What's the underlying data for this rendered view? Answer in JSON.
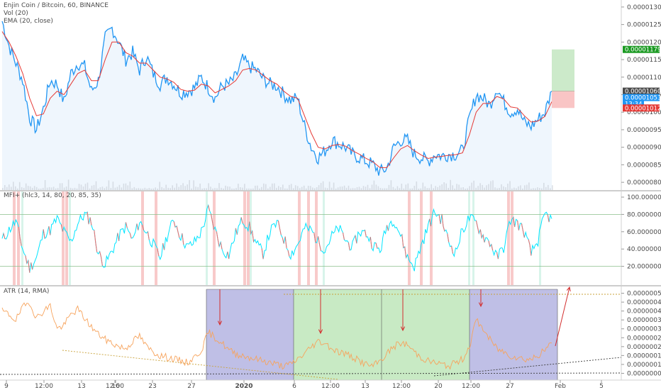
{
  "legend": {
    "symbol": "Enjin Coin / Bitcoin, 60, BINANCE",
    "vol": "Vol (20)",
    "ema": "EMA (20, close)",
    "mfi": "MFI+ (hlc3, 14, 80, 20, 85, 35)",
    "atr": "ATR (14, RMA)"
  },
  "colors": {
    "price_line": "#2196f3",
    "ema_line": "#e53935",
    "mfi_line": "#00e5ff",
    "mfi_red": "#e57373",
    "atr_line": "#f7a35c",
    "blue_box": "#9c9cd9",
    "green_box": "#b5e3b0",
    "arrow": "#d32f2f"
  },
  "chart_data": [
    {
      "type": "line",
      "panel": "price",
      "y_ticks": [
        "0.00001300",
        "0.00001250",
        "0.00001200",
        "0.00001150",
        "0.00001100",
        "0.00001050",
        "0.00001000",
        "0.00000950",
        "0.00000900",
        "0.00000850",
        "0.00000800"
      ],
      "ylim": [
        7.78e-06,
        1.32e-05
      ],
      "series": [
        {
          "name": "EnjinCoin/BTC",
          "values": [
            1.26e-05,
            1.19e-05,
            1.14e-05,
            1.09e-05,
            9.85e-06,
            9.5e-06,
            1.01e-05,
            1.09e-05,
            1.08e-05,
            1.03e-05,
            1.11e-05,
            1.14e-05,
            1.13e-05,
            1.06e-05,
            1.09e-05,
            1.21e-05,
            1.24e-05,
            1.2e-05,
            1.15e-05,
            1.17e-05,
            1.12e-05,
            1.16e-05,
            1.11e-05,
            1.08e-05,
            1.1e-05,
            1.08e-05,
            1.055e-05,
            1.06e-05,
            1.07e-05,
            1.1e-05,
            1.07e-05,
            1.04e-05,
            1.075e-05,
            1.08e-05,
            1.1e-05,
            1.15e-05,
            1.13e-05,
            1.12e-05,
            1.095e-05,
            1.08e-05,
            1.075e-05,
            1.05e-05,
            1.035e-05,
            1.04e-05,
            9.6e-06,
            9e-06,
            8.7e-06,
            8.9e-06,
            9.2e-06,
            9.1e-06,
            9e-06,
            8.8e-06,
            8.7e-06,
            8.6e-06,
            8.5e-06,
            8.3e-06,
            8.4e-06,
            9e-06,
            9.2e-06,
            9.2e-06,
            8.8e-06,
            8.7e-06,
            8.6e-06,
            8.8e-06,
            8.75e-06,
            8.8e-06,
            8.8e-06,
            8.9e-06,
            9.8e-06,
            1.05e-05,
            1.04e-05,
            1.02e-05,
            1.07e-05,
            1.03e-05,
            1e-05,
            1.01e-05,
            9.7e-06,
            9.6e-06,
            9.8e-06,
            1e-05,
            1.06e-05
          ]
        },
        {
          "name": "EMA",
          "values": [
            1.23e-05,
            1.2e-05,
            1.16e-05,
            1.11e-05,
            1.04e-05,
            9.9e-06,
            9.95e-06,
            1.04e-05,
            1.06e-05,
            1.05e-05,
            1.08e-05,
            1.11e-05,
            1.12e-05,
            1.09e-05,
            1.09e-05,
            1.15e-05,
            1.2e-05,
            1.2e-05,
            1.17e-05,
            1.16e-05,
            1.14e-05,
            1.14e-05,
            1.12e-05,
            1.1e-05,
            1.095e-05,
            1.085e-05,
            1.065e-05,
            1.06e-05,
            1.063e-05,
            1.08e-05,
            1.075e-05,
            1.055e-05,
            1.065e-05,
            1.075e-05,
            1.09e-05,
            1.12e-05,
            1.125e-05,
            1.12e-05,
            1.105e-05,
            1.09e-05,
            1.08e-05,
            1.06e-05,
            1.045e-05,
            1.04e-05,
            9.9e-06,
            9.4e-06,
            9e-06,
            8.95e-06,
            9.05e-06,
            9.08e-06,
            9.03e-06,
            8.9e-06,
            8.8e-06,
            8.68e-06,
            8.58e-06,
            8.42e-06,
            8.42e-06,
            8.7e-06,
            8.95e-06,
            9.05e-06,
            8.9e-06,
            8.78e-06,
            8.68e-06,
            8.72e-06,
            8.74e-06,
            8.77e-06,
            8.79e-06,
            8.84e-06,
            9.35e-06,
            1e-05,
            1.025e-05,
            1.025e-05,
            1.045e-05,
            1.038e-05,
            1.015e-05,
            1.012e-05,
            9.9e-06,
            9.72e-06,
            9.75e-06,
            9.88e-06,
            1.03e-05
          ]
        }
      ],
      "price_tags": [
        "0.00001179",
        "0.00001060",
        "0.00001053",
        "13:34",
        "0.00001012"
      ],
      "position_tool": {
        "target": 1.179e-05,
        "entry": 1.06e-05,
        "stop": 1.012e-05
      }
    },
    {
      "type": "line",
      "panel": "mfi",
      "y_ticks": [
        "100.00000000",
        "80.00000000",
        "60.00000000",
        "40.00000000",
        "20.00000000"
      ],
      "ylim": [
        0,
        100
      ],
      "levels": [
        80,
        20
      ],
      "series": [
        {
          "name": "MFI",
          "values": [
            50,
            62,
            72,
            40,
            18,
            30,
            58,
            62,
            75,
            60,
            48,
            70,
            80,
            72,
            35,
            22,
            38,
            55,
            66,
            50,
            72,
            60,
            45,
            30,
            55,
            74,
            55,
            42,
            48,
            60,
            86,
            62,
            40,
            33,
            58,
            74,
            65,
            46,
            35,
            60,
            70,
            52,
            34,
            45,
            64,
            62,
            48,
            40,
            55,
            64,
            50,
            42,
            60,
            58,
            45,
            38,
            66,
            75,
            56,
            30,
            20,
            44,
            66,
            83,
            74,
            48,
            36,
            62,
            76,
            70,
            55,
            48,
            30,
            42,
            74,
            70,
            60,
            35,
            50,
            80,
            75
          ]
        }
      ]
    },
    {
      "type": "line",
      "panel": "atr",
      "y_ticks": [
        "0.00000050",
        "0.00000045",
        "0.00000040",
        "0.00000035",
        "0.00000030",
        "0.00000025",
        "0.00000020",
        "0.00000015",
        "0.00000010",
        "0.00000005"
      ],
      "ylim": [
        2e-08,
        5.3e-07
      ],
      "series": [
        {
          "name": "ATR",
          "values": [
            4e-07,
            3.8e-07,
            3.5e-07,
            4.2e-07,
            4.5e-07,
            3.6e-07,
            4e-07,
            4.3e-07,
            3e-07,
            3.2e-07,
            3.8e-07,
            4.1e-07,
            3.6e-07,
            3.1e-07,
            2.7e-07,
            2.4e-07,
            2.2e-07,
            2e-07,
            1.9e-07,
            2.3e-07,
            2.6e-07,
            2e-07,
            1.7e-07,
            1.5e-07,
            1.4e-07,
            1.3e-07,
            1.2e-07,
            1.1e-07,
            1.4e-07,
            1.8e-07,
            2.8e-07,
            2.5e-07,
            2.2e-07,
            1.8e-07,
            1.6e-07,
            1.5e-07,
            1.4e-07,
            1.3e-07,
            1.2e-07,
            1.1e-07,
            1e-07,
            9e-08,
            1e-07,
            1.3e-07,
            1.6e-07,
            2e-07,
            2.3e-07,
            2.2e-07,
            1.9e-07,
            1.7e-07,
            1.6e-07,
            1.4e-07,
            1.2e-07,
            1e-07,
            9e-08,
            1.2e-07,
            1.6e-07,
            2e-07,
            2.2e-07,
            2.1e-07,
            1.7e-07,
            1.4e-07,
            1.2e-07,
            1.1e-07,
            1e-07,
            9e-08,
            1.1e-07,
            1.3e-07,
            2e-07,
            3.5e-07,
            3e-07,
            2.4e-07,
            1.9e-07,
            1.7e-07,
            1.5e-07,
            1.4e-07,
            1.3e-07,
            1.3e-07,
            1.5e-07,
            1.8e-07,
            2.2e-07
          ]
        }
      ]
    }
  ],
  "x_axis": {
    "labels": [
      "9",
      "12:00",
      "13",
      "16",
      "12:00",
      "23",
      "27",
      "2020",
      "6",
      "12:00",
      "13",
      "12:00",
      "20",
      "12:00",
      "27",
      "Feb",
      "5"
    ],
    "label_positions": [
      9,
      62,
      115,
      163,
      162,
      215,
      270,
      344,
      415,
      466,
      515,
      566,
      618,
      664,
      719,
      790,
      848
    ]
  }
}
